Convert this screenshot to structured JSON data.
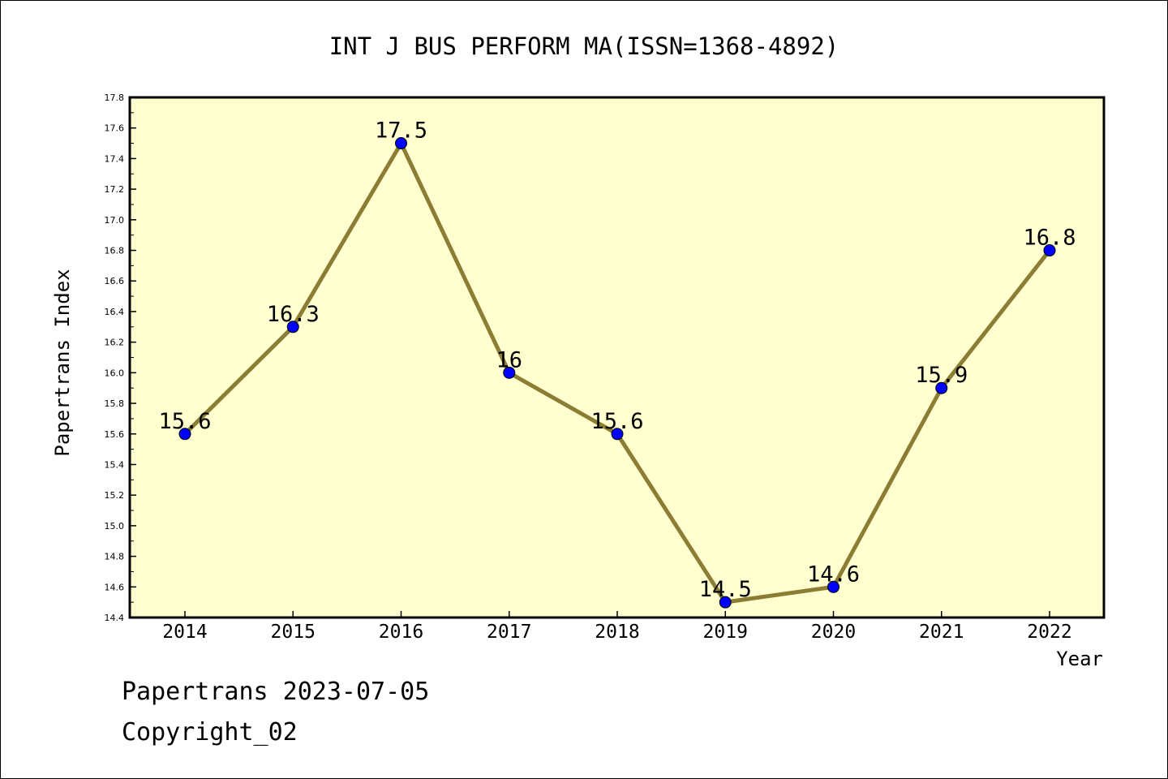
{
  "chart_data": {
    "type": "line",
    "title": "INT J BUS PERFORM MA(ISSN=1368-4892)",
    "xlabel": "Year",
    "ylabel": "Papertrans Index",
    "categories": [
      "2014",
      "2015",
      "2016",
      "2017",
      "2018",
      "2019",
      "2020",
      "2021",
      "2022"
    ],
    "series": [
      {
        "values": [
          15.6,
          16.3,
          17.5,
          16.0,
          15.6,
          14.5,
          14.6,
          15.9,
          16.8
        ],
        "labels": [
          "15.6",
          "16.3",
          "17.5",
          "16",
          "15.6",
          "14.5",
          "14.6",
          "15.9",
          "16.8"
        ]
      }
    ],
    "ylim": [
      14.4,
      17.8
    ],
    "yticks": [
      "14.4",
      "14.6",
      "14.8",
      "15.0",
      "15.2",
      "15.4",
      "15.6",
      "15.8",
      "16.0",
      "16.2",
      "16.4",
      "16.6",
      "16.8",
      "17.0",
      "17.2",
      "17.4",
      "17.6",
      "17.8"
    ],
    "grid": false,
    "colors": {
      "plot_background": "#ffffd0",
      "line": "#8b7d34",
      "marker": "#0000ff",
      "axes": "#000000"
    }
  },
  "footer": {
    "line1": "Papertrans 2023-07-05",
    "line2": "Copyright_02"
  }
}
